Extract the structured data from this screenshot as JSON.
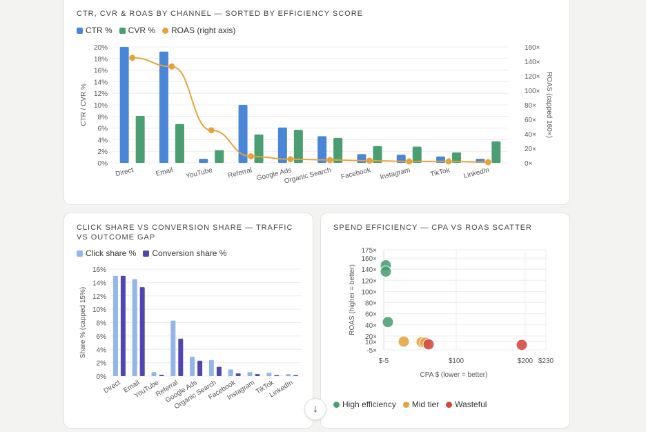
{
  "chart_data": [
    {
      "type": "bar",
      "title": "CTR, CVR & ROAS by channel — sorted by efficiency score",
      "categories": [
        "Direct",
        "Email",
        "YouTube",
        "Referral",
        "Google Ads",
        "Organic Search",
        "Facebook",
        "Instagram",
        "TikTok",
        "LinkedIn"
      ],
      "series": [
        {
          "name": "CTR %",
          "values": [
            20,
            19.2,
            0.7,
            10,
            6.1,
            4.6,
            1.5,
            1.4,
            1.1,
            0.7
          ],
          "color": "#4a86d8",
          "axis": "left"
        },
        {
          "name": "CVR %",
          "values": [
            8.1,
            6.7,
            2.2,
            4.9,
            5.7,
            4.3,
            2.9,
            2.8,
            1.8,
            3.7
          ],
          "color": "#4a9e72",
          "axis": "left"
        },
        {
          "name": "ROAS (right axis)",
          "values": [
            145,
            133,
            45,
            9,
            5,
            4,
            3,
            2,
            2,
            1
          ],
          "color": "#e5a33c",
          "axis": "right",
          "type": "line"
        }
      ],
      "ylabel": "CTR / CVR %",
      "ylabel_right": "ROAS (capped 160×)",
      "ylim": [
        0,
        20
      ],
      "ylim_right": [
        0,
        160
      ],
      "yticks": [
        "0%",
        "2%",
        "4%",
        "6%",
        "8%",
        "10%",
        "12%",
        "14%",
        "16%",
        "18%",
        "20%"
      ],
      "yticks_right": [
        "0×",
        "20×",
        "40×",
        "60×",
        "80×",
        "100×",
        "120×",
        "140×",
        "160×"
      ],
      "legend": [
        "CTR %",
        "CVR %",
        "ROAS (right axis)"
      ]
    },
    {
      "type": "bar",
      "title": "Click share vs conversion share — traffic vs outcome gap",
      "categories": [
        "Direct",
        "Email",
        "YouTube",
        "Referral",
        "Google Ads",
        "Organic Search",
        "Facebook",
        "Instagram",
        "TikTok",
        "LinkedIn"
      ],
      "series": [
        {
          "name": "Click share %",
          "values": [
            15,
            14.5,
            0.6,
            8.3,
            2.9,
            2.4,
            1.0,
            0.6,
            0.5,
            0.3
          ],
          "color": "#92b6ea"
        },
        {
          "name": "Conversion share %",
          "values": [
            15,
            13.3,
            0.2,
            5.6,
            2.3,
            1.4,
            0.4,
            0.3,
            0.15,
            0.15
          ],
          "color": "#4f46b0"
        }
      ],
      "ylabel": "Share % (capped 15%)",
      "ylim": [
        0,
        16
      ],
      "yticks": [
        "0%",
        "2%",
        "4%",
        "6%",
        "8%",
        "10%",
        "12%",
        "14%",
        "16%"
      ],
      "legend": [
        "Click share %",
        "Conversion share %"
      ]
    },
    {
      "type": "scatter",
      "title": "Spend efficiency — CPA vs ROAS scatter",
      "xlabel": "CPA $ (lower = better)",
      "ylabel": "ROAS (higher = better)",
      "xlim": [
        -5,
        230
      ],
      "ylim": [
        -5,
        175
      ],
      "xticks": [
        "$-5",
        "$100",
        "$200",
        "$230"
      ],
      "yticks": [
        "-5×",
        "10×",
        "20×",
        "40×",
        "60×",
        "80×",
        "100×",
        "120×",
        "140×",
        "160×",
        "175×"
      ],
      "points": [
        {
          "x": -2,
          "y": 147,
          "group": "High efficiency"
        },
        {
          "x": -2,
          "y": 136,
          "group": "High efficiency"
        },
        {
          "x": 1,
          "y": 45,
          "group": "High efficiency"
        },
        {
          "x": 24,
          "y": 10,
          "group": "Mid tier"
        },
        {
          "x": 50,
          "y": 9,
          "group": "Mid tier"
        },
        {
          "x": 55,
          "y": 8,
          "group": "Mid tier"
        },
        {
          "x": 60,
          "y": 5,
          "group": "Wasteful"
        },
        {
          "x": 195,
          "y": 4,
          "group": "Wasteful"
        }
      ],
      "groups": [
        {
          "name": "High efficiency",
          "color": "#4a9e72"
        },
        {
          "name": "Mid tier",
          "color": "#e5a33c"
        },
        {
          "name": "Wasteful",
          "color": "#d1473e"
        }
      ]
    }
  ],
  "scroll_icon": "arrow-down-icon",
  "scroll_glyph": "↓"
}
